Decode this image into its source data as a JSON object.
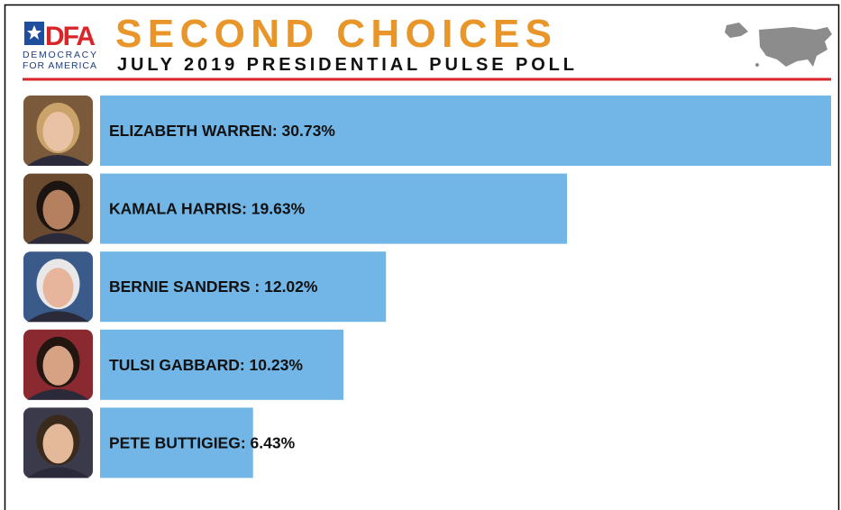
{
  "logo": {
    "mark": "DFA",
    "lines": [
      "DEMOCRACY",
      "FOR AMERICA"
    ]
  },
  "chart_data": {
    "type": "bar",
    "orientation": "horizontal",
    "title": "SECOND CHOICES",
    "subtitle": "JULY 2019 PRESIDENTIAL PULSE POLL",
    "values": [
      30.73,
      19.63,
      12.02,
      10.23,
      6.43
    ],
    "value_labels": [
      "ELIZABETH WARREN: 30.73%",
      "KAMALA HARRIS: 19.63%",
      "BERNIE SANDERS : 12.02%",
      "TULSI GABBARD: 10.23%",
      "PETE BUTTIGIEG: 6.43%"
    ],
    "color": "#71b6e6"
  }
}
